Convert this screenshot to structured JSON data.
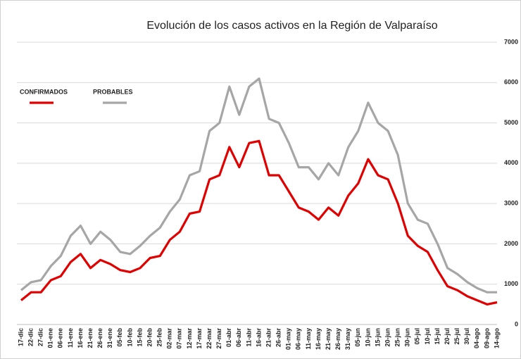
{
  "chart_data": {
    "type": "line",
    "title": "Evolución de los casos activos en la Región de Valparaíso",
    "categories": [
      "17-dic",
      "22-dic",
      "27-dic",
      "01-ene",
      "06-ene",
      "11-ene",
      "16-ene",
      "21-ene",
      "26-ene",
      "31-ene",
      "05-feb",
      "10-feb",
      "15-feb",
      "20-feb",
      "25-feb",
      "02-mar",
      "07-mar",
      "12-mar",
      "17-mar",
      "22-mar",
      "27-mar",
      "01-abr",
      "06-abr",
      "11-abr",
      "16-abr",
      "21-abr",
      "26-abr",
      "01-may",
      "06-may",
      "11-may",
      "16-may",
      "21-may",
      "26-may",
      "31-may",
      "05-jun",
      "10-jun",
      "15-jun",
      "20-jun",
      "25-jun",
      "30-jun",
      "05-jul",
      "10-jul",
      "15-jul",
      "20-jul",
      "25-jul",
      "30-jul",
      "04-ago",
      "09-ago",
      "14-ago"
    ],
    "series": [
      {
        "name": "CONFIRMADOS",
        "color": "#e00000",
        "values": [
          600,
          800,
          800,
          1100,
          1200,
          1550,
          1750,
          1400,
          1600,
          1500,
          1350,
          1300,
          1400,
          1650,
          1700,
          2100,
          2300,
          2750,
          2800,
          3600,
          3700,
          4400,
          3900,
          4500,
          4550,
          3700,
          3700,
          3300,
          2900,
          2800,
          2600,
          2900,
          2700,
          3200,
          3500,
          4100,
          3700,
          3600,
          3000,
          2200,
          1950,
          1800,
          1350,
          950,
          850,
          700,
          600,
          500,
          550
        ]
      },
      {
        "name": "PROBABLES",
        "color": "#a6a6a6",
        "values": [
          850,
          1050,
          1100,
          1450,
          1700,
          2200,
          2450,
          2000,
          2300,
          2100,
          1800,
          1750,
          1950,
          2200,
          2400,
          2800,
          3100,
          3700,
          3800,
          4800,
          5000,
          5900,
          5200,
          5900,
          6100,
          5100,
          5000,
          4500,
          3900,
          3900,
          3600,
          4000,
          3700,
          4400,
          4800,
          5500,
          5000,
          4800,
          4200,
          3000,
          2600,
          2500,
          2000,
          1400,
          1250,
          1050,
          900,
          800,
          800
        ]
      }
    ],
    "ylim": [
      0,
      7000
    ],
    "yticks": [
      0,
      1000,
      2000,
      3000,
      4000,
      5000,
      6000,
      7000
    ],
    "grid": true
  }
}
